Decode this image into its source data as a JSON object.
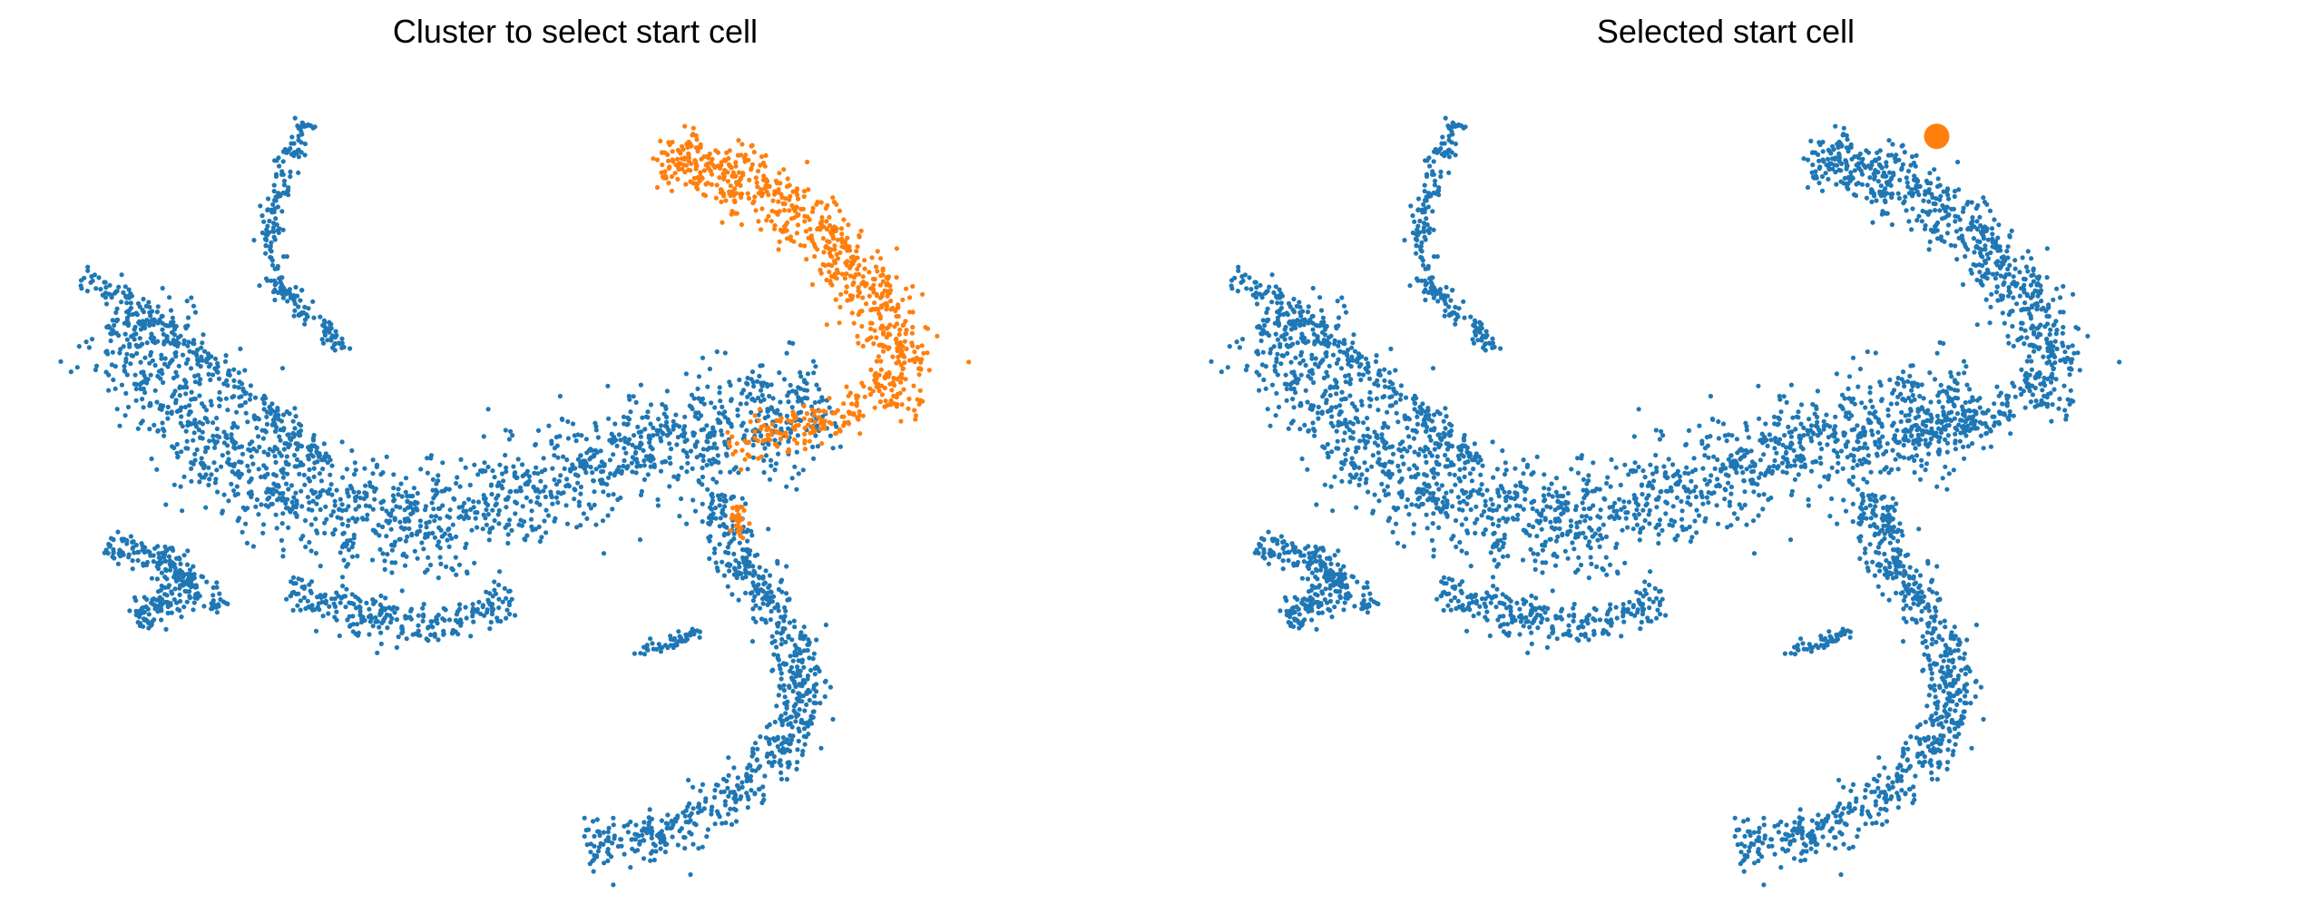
{
  "chart_data": [
    {
      "type": "scatter",
      "title": "Cluster to select start cell",
      "axes_visible": false,
      "legend": "none",
      "xlim": [
        -10,
        10
      ],
      "ylim": [
        -8,
        8
      ],
      "series": [
        {
          "color": "#1f77b4",
          "role": "other cells",
          "values_note": "dense point cloud along the manifold",
          "points": []
        },
        {
          "color": "#ff7f0e",
          "role": "start cluster",
          "points": []
        }
      ]
    },
    {
      "type": "scatter",
      "title": "Selected start cell",
      "axes_visible": false,
      "legend": "none",
      "xlim": [
        -10,
        10
      ],
      "ylim": [
        -8,
        8
      ],
      "series": [
        {
          "color": "#1f77b4",
          "role": "all cells",
          "points": []
        },
        {
          "color": "#ff7f0e",
          "role": "selected start cell",
          "points": [
            [
              4.05,
              6.9
            ]
          ]
        }
      ]
    }
  ],
  "layout_hint": {
    "structure": [
      {
        "name": "upper-arc",
        "path": [
          [
            -5.2,
            7.2
          ],
          [
            -5.6,
            6.2
          ],
          [
            -5.9,
            5.0
          ],
          [
            -5.7,
            3.9
          ],
          [
            -5.0,
            3.2
          ],
          [
            -4.4,
            2.6
          ]
        ],
        "width": 0.25,
        "n": 220
      },
      {
        "name": "left-wing-top",
        "path": [
          [
            -9.5,
            4.2
          ],
          [
            -8.4,
            3.4
          ],
          [
            -7.2,
            2.5
          ],
          [
            -6.0,
            1.4
          ],
          [
            -4.8,
            0.3
          ]
        ],
        "width": 0.35,
        "n": 260
      },
      {
        "name": "left-wing-wide",
        "path": [
          [
            -8.8,
            3.2
          ],
          [
            -7.6,
            1.5
          ],
          [
            -6.5,
            0.3
          ],
          [
            -5.0,
            -0.5
          ],
          [
            -3.2,
            -1.0
          ],
          [
            -1.5,
            -0.6
          ],
          [
            0.2,
            0.2
          ],
          [
            2.0,
            0.9
          ],
          [
            3.5,
            1.2
          ],
          [
            4.8,
            1.5
          ]
        ],
        "width": 1.2,
        "n": 1600
      },
      {
        "name": "left-arm-bottom",
        "path": [
          [
            -9.0,
            -1.3
          ],
          [
            -8.2,
            -1.5
          ],
          [
            -7.5,
            -1.9
          ],
          [
            -6.8,
            -2.6
          ]
        ],
        "width": 0.35,
        "n": 160
      },
      {
        "name": "left-lobe",
        "path": [
          [
            -8.4,
            -2.9
          ],
          [
            -7.9,
            -2.5
          ],
          [
            -7.4,
            -2.0
          ]
        ],
        "width": 0.45,
        "n": 120
      },
      {
        "name": "bottom-belly",
        "path": [
          [
            -5.5,
            -2.2
          ],
          [
            -4.0,
            -2.8
          ],
          [
            -2.5,
            -2.9
          ],
          [
            -1.2,
            -2.4
          ]
        ],
        "width": 0.5,
        "n": 260
      },
      {
        "name": "bottom-right-arc",
        "path": [
          [
            2.7,
            -0.3
          ],
          [
            2.9,
            -1.2
          ],
          [
            3.6,
            -2.2
          ],
          [
            4.3,
            -3.5
          ],
          [
            4.3,
            -5.0
          ],
          [
            3.0,
            -6.5
          ],
          [
            1.5,
            -7.2
          ],
          [
            0.2,
            -7.4
          ]
        ],
        "width": 0.55,
        "n": 700
      },
      {
        "name": "bottom-right-stub",
        "path": [
          [
            1.1,
            -3.5
          ],
          [
            1.8,
            -3.3
          ],
          [
            2.4,
            -3.1
          ]
        ],
        "width": 0.15,
        "n": 50
      }
    ],
    "orange_structure": [
      {
        "name": "upper-right-hook",
        "path": [
          [
            1.6,
            6.6
          ],
          [
            2.5,
            6.4
          ],
          [
            3.3,
            6.0
          ],
          [
            4.3,
            5.3
          ],
          [
            5.3,
            4.4
          ],
          [
            6.1,
            3.1
          ],
          [
            6.3,
            2.0
          ],
          [
            5.8,
            1.5
          ]
        ],
        "width": 0.7,
        "n": 700
      },
      {
        "name": "hook-tail",
        "path": [
          [
            5.5,
            1.5
          ],
          [
            4.2,
            1.0
          ],
          [
            3.0,
            0.6
          ]
        ],
        "width": 0.45,
        "n": 140
      },
      {
        "name": "orange-link",
        "path": [
          [
            3.1,
            -0.5
          ],
          [
            3.2,
            -1.2
          ]
        ],
        "width": 0.15,
        "n": 30
      }
    ]
  }
}
